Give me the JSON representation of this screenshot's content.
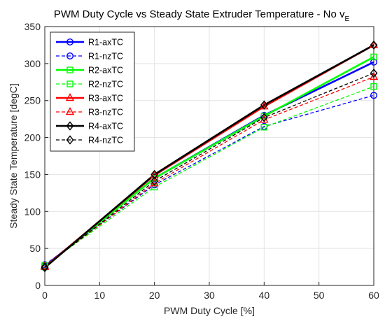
{
  "chart_data": {
    "type": "line",
    "title": "PWM Duty Cycle vs Steady State Extruder Temperature - No v",
    "title_subscript": "E",
    "xlabel": "PWM Duty Cycle [%]",
    "ylabel": "Steady State Temperature [degC]",
    "xlim": [
      0,
      60
    ],
    "ylim": [
      0,
      350
    ],
    "xticks": [
      0,
      10,
      20,
      30,
      40,
      50,
      60
    ],
    "yticks": [
      0,
      50,
      100,
      150,
      200,
      250,
      300,
      350
    ],
    "grid": true,
    "legend_position": "top-left",
    "x": [
      0,
      20,
      40,
      60
    ],
    "series": [
      {
        "name": "R1-axTC",
        "values": [
          26,
          145,
          230,
          302
        ],
        "color": "#0000ff",
        "dash": "solid",
        "marker": "circle"
      },
      {
        "name": "R1-nzTC",
        "values": [
          28,
          136,
          215,
          257
        ],
        "color": "#0000ff",
        "dash": "dashed",
        "marker": "circle"
      },
      {
        "name": "R2-axTC",
        "values": [
          25,
          145,
          229,
          309
        ],
        "color": "#00ff00",
        "dash": "solid",
        "marker": "square"
      },
      {
        "name": "R2-nzTC",
        "values": [
          27,
          133,
          214,
          269
        ],
        "color": "#00ff00",
        "dash": "dashed",
        "marker": "square"
      },
      {
        "name": "R3-axTC",
        "values": [
          25,
          149,
          242,
          325
        ],
        "color": "#ff0000",
        "dash": "solid",
        "marker": "triangle"
      },
      {
        "name": "R3-nzTC",
        "values": [
          26,
          138,
          224,
          282
        ],
        "color": "#ff0000",
        "dash": "dashed",
        "marker": "triangle"
      },
      {
        "name": "R4-axTC",
        "values": [
          24,
          150,
          244,
          325
        ],
        "color": "#000000",
        "dash": "solid",
        "marker": "diamond"
      },
      {
        "name": "R4-nzTC",
        "values": [
          25,
          141,
          227,
          287
        ],
        "color": "#000000",
        "dash": "dashed",
        "marker": "diamond"
      }
    ]
  }
}
